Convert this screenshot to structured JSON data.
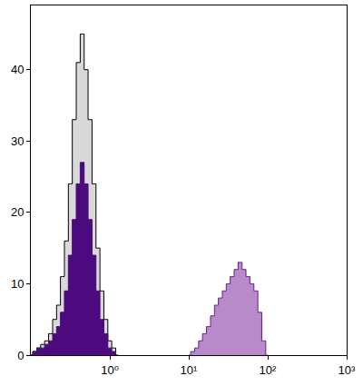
{
  "chart_data": {
    "type": "histogram",
    "log": "x",
    "grid": false,
    "xlim": [
      0.1,
      1000
    ],
    "xticks": [
      {
        "value": 1,
        "label": "10⁰"
      },
      {
        "value": 10,
        "label": "10¹"
      },
      {
        "value": 100,
        "label": "10²"
      },
      {
        "value": 1000,
        "label": "10³"
      }
    ],
    "ylim": [
      0,
      49
    ],
    "yticks": [
      0,
      10,
      20,
      30,
      40
    ],
    "series": [
      {
        "color": "#d9d9d9",
        "x": [
          0.1,
          0.112,
          0.126,
          0.141,
          0.158,
          0.178,
          0.2,
          0.224,
          0.251,
          0.282,
          0.316,
          0.355,
          0.398,
          0.447,
          0.501,
          0.562,
          0.631,
          0.708,
          0.794,
          0.891,
          1.0,
          1.12,
          1.26
        ],
        "values": [
          0,
          0.5,
          1,
          1.5,
          2,
          3,
          5,
          7,
          11,
          16,
          24,
          33,
          41,
          45,
          40,
          33,
          24,
          15,
          9,
          5,
          2,
          1,
          0
        ]
      },
      {
        "color": "#4b0a7d",
        "x": [
          0.1,
          0.112,
          0.126,
          0.141,
          0.158,
          0.178,
          0.2,
          0.224,
          0.251,
          0.282,
          0.316,
          0.355,
          0.398,
          0.447,
          0.501,
          0.562,
          0.631,
          0.708,
          0.794,
          0.891,
          1.0,
          1.12,
          1.26
        ],
        "values": [
          0,
          0.5,
          1,
          1,
          1.5,
          2,
          3,
          4,
          6,
          9,
          14,
          19,
          24,
          27,
          24,
          19,
          14,
          9,
          5,
          3,
          1,
          0.5,
          0
        ]
      },
      {
        "color": "#b98ac9",
        "x": [
          10,
          11.2,
          12.6,
          14.1,
          15.8,
          17.8,
          20,
          22.4,
          25.1,
          28.2,
          31.6,
          35.5,
          39.8,
          44.7,
          50.1,
          56.2,
          63.1,
          70.8,
          79.4,
          89.1,
          100
        ],
        "values": [
          0,
          0.5,
          1,
          2,
          3,
          4,
          5.5,
          7,
          8,
          9,
          10,
          11,
          12,
          13,
          12,
          11,
          10,
          9,
          6,
          2,
          0
        ]
      }
    ]
  }
}
